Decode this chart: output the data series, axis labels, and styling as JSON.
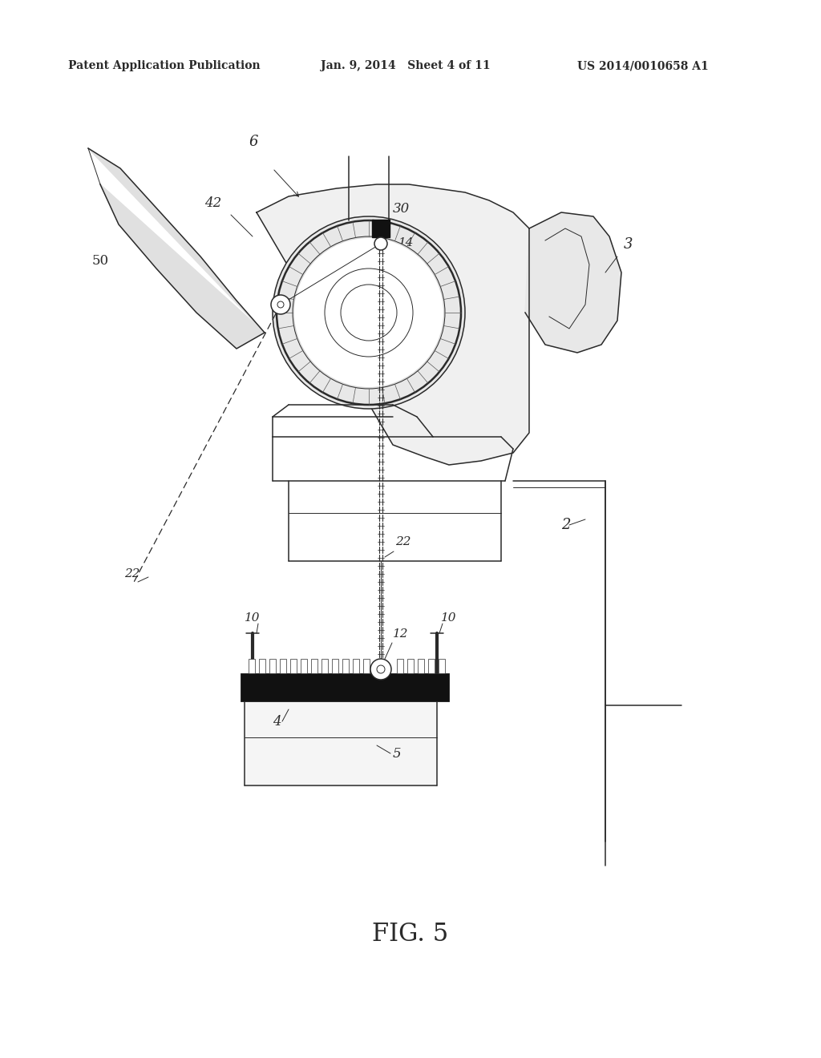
{
  "header_left": "Patent Application Publication",
  "header_mid": "Jan. 9, 2014   Sheet 4 of 11",
  "header_right": "US 2014/0010658 A1",
  "figure_label": "FIG. 5",
  "bg_color": "#ffffff",
  "line_color": "#2a2a2a",
  "header_fontsize": 10,
  "fig_label_fontsize": 22
}
